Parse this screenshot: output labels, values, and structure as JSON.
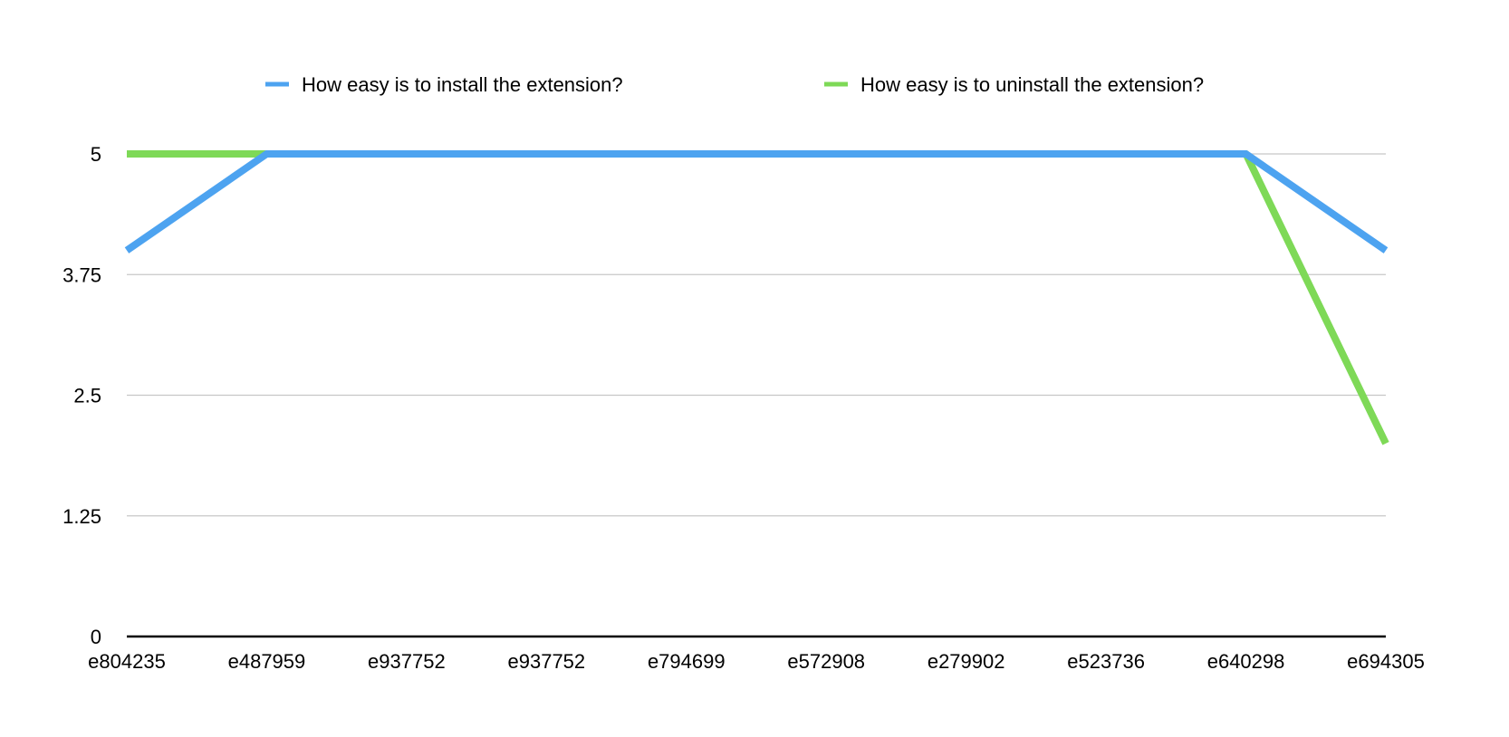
{
  "chart_data": {
    "type": "line",
    "categories": [
      "e804235",
      "e487959",
      "e937752",
      "e937752",
      "e794699",
      "e572908",
      "e279902",
      "e523736",
      "e640298",
      "e694305"
    ],
    "series": [
      {
        "name": "How easy is to install the extension?",
        "color": "#4da3f0",
        "values": [
          4,
          5,
          5,
          5,
          5,
          5,
          5,
          5,
          5,
          4
        ]
      },
      {
        "name": "How easy is to uninstall the extension?",
        "color": "#7ed957",
        "values": [
          5,
          5,
          5,
          5,
          5,
          5,
          5,
          5,
          5,
          2
        ]
      }
    ],
    "y_ticks": [
      "0",
      "1.25",
      "2.5",
      "3.75",
      "5"
    ],
    "ylim": [
      0,
      5
    ],
    "grid": true,
    "legend_position": "top"
  }
}
